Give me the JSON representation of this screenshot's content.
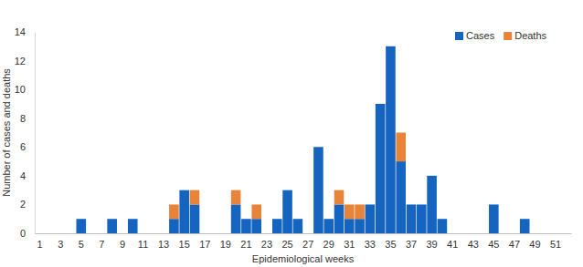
{
  "chart_data": {
    "type": "bar",
    "stacked": true,
    "legend": "top-right",
    "x_label": "Epidemiological weeks",
    "y_label": "Number of cases and deaths",
    "categories": [
      1,
      null,
      3,
      null,
      5,
      null,
      7,
      null,
      9,
      null,
      11,
      null,
      13,
      null,
      15,
      null,
      17,
      null,
      19,
      null,
      21,
      null,
      23,
      null,
      25,
      null,
      27,
      null,
      29,
      null,
      31,
      null,
      33,
      null,
      35,
      null,
      37,
      null,
      39,
      null,
      41,
      null,
      43,
      null,
      45,
      null,
      47,
      null,
      49,
      null,
      51,
      null
    ],
    "series": [
      {
        "name": "Cases",
        "color": "#1565c0",
        "values": [
          0,
          0,
          0,
          0,
          1,
          0,
          0,
          1,
          0,
          1,
          0,
          0,
          0,
          1,
          3,
          2,
          0,
          0,
          0,
          2,
          1,
          1,
          0,
          1,
          3,
          1,
          0,
          6,
          1,
          2,
          1,
          1,
          2,
          9,
          13,
          5,
          2,
          2,
          4,
          1,
          0,
          0,
          0,
          0,
          2,
          0,
          0,
          1,
          0,
          0,
          0,
          0
        ]
      },
      {
        "name": "Deaths",
        "color": "#e8833a",
        "values": [
          0,
          0,
          0,
          0,
          0,
          0,
          0,
          0,
          0,
          0,
          0,
          0,
          0,
          1,
          0,
          1,
          0,
          0,
          0,
          1,
          0,
          1,
          0,
          0,
          0,
          0,
          0,
          0,
          0,
          1,
          1,
          1,
          0,
          0,
          0,
          2,
          0,
          0,
          0,
          0,
          0,
          0,
          0,
          0,
          0,
          0,
          0,
          0,
          0,
          0,
          0,
          0
        ]
      }
    ],
    "ylim": [
      0,
      14
    ],
    "yticks": [
      0,
      2,
      4,
      6,
      8,
      10,
      12,
      14
    ],
    "grid": false
  }
}
